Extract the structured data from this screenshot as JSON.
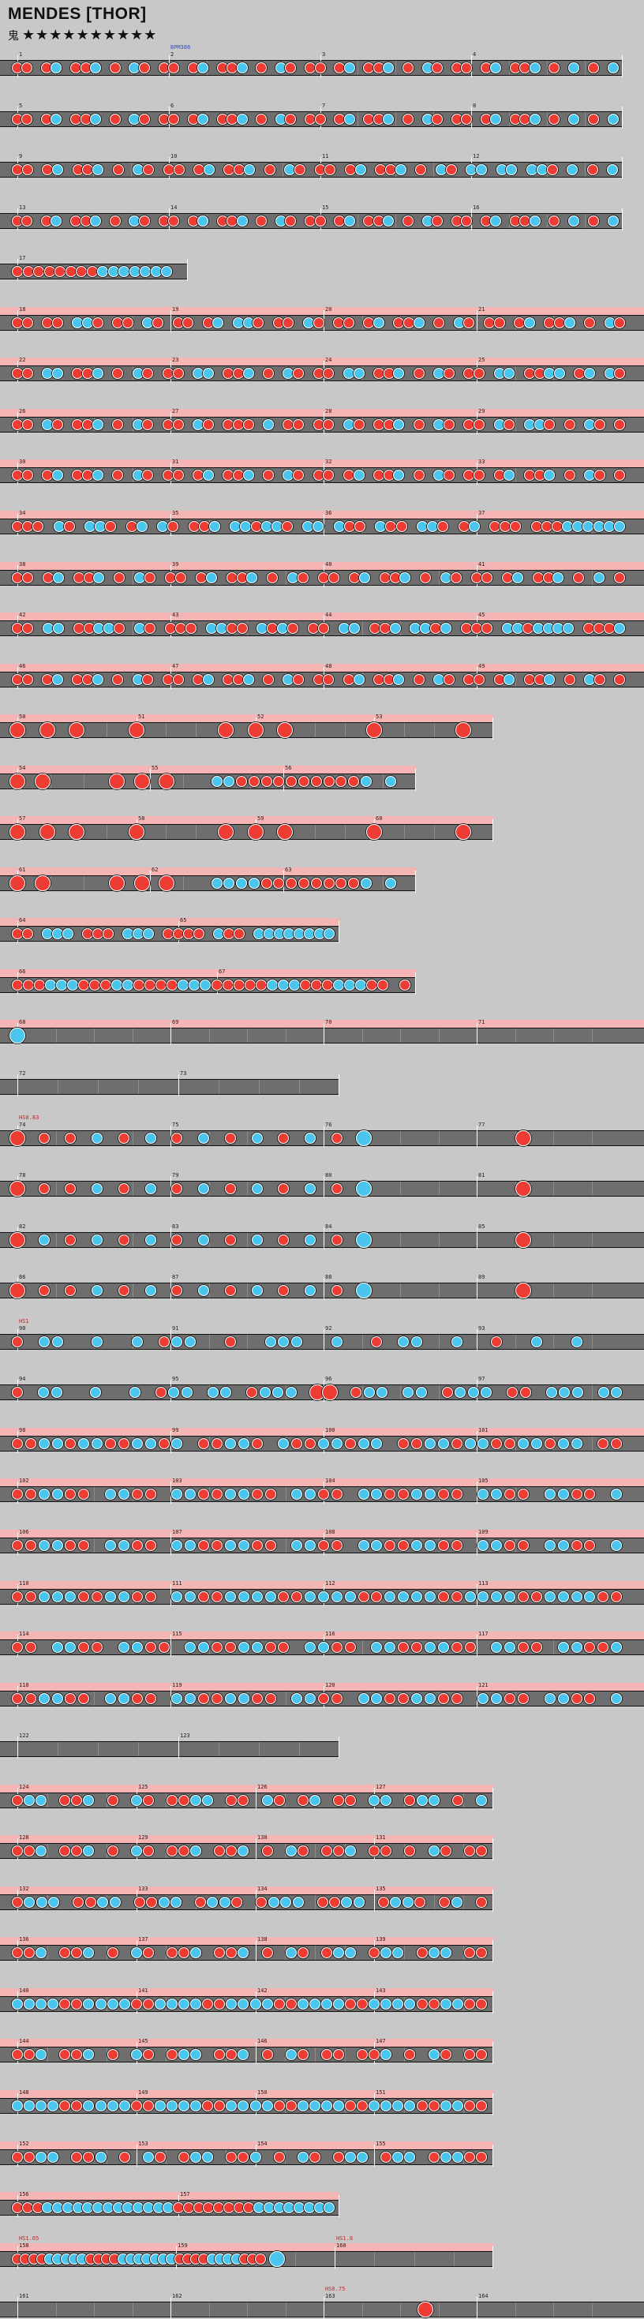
{
  "song": {
    "title": "MENDES [THOR]",
    "difficulty_label": "鬼",
    "stars": "★★★★★★★★★★",
    "star_count": 10
  },
  "rows": [
    {
      "measures": [
        1,
        2,
        3,
        4
      ],
      "end": 789,
      "gogo": false,
      "ann": [
        {
          "text": "BPM386",
          "after": 1,
          "color": "#3050d0"
        }
      ],
      "notes": "dd.dk.ddk.d.kd.dd.dk.ddk.d.kd.dd.dk.ddk.d.kd.dd.dk.ddk.d.k.d.k"
    },
    {
      "measures": [
        5,
        6,
        7,
        8
      ],
      "end": 789,
      "gogo": false,
      "ann": [],
      "notes": "dd.dk.ddk.d.kd.dd.dk.ddk.d.kd.dd.dk.ddk.d.kd.dd.dk.ddk.d.k.d.k"
    },
    {
      "measures": [
        9,
        10,
        11,
        12
      ],
      "end": 789,
      "gogo": false,
      "ann": [],
      "notes": "dd.dk.ddk.d.kd.dd.dk.ddk.d.kd.dd.dk.ddk.d.kd.kk.kk.kkd.k.d.k"
    },
    {
      "measures": [
        13,
        14,
        15,
        16
      ],
      "end": 789,
      "gogo": false,
      "ann": [],
      "notes": "dd.dk.ddk.d.kd.dd.dk.ddk.d.kd.dd.dk.ddk.d.kd.dd.dk.ddk.d.k.d.k"
    },
    {
      "measures": [
        17
      ],
      "end": 238,
      "gogo": false,
      "ann": [],
      "notes": "ddddddddkkkkkkk."
    },
    {
      "measures": [
        18,
        19,
        20,
        21
      ],
      "end": 816,
      "gogo": true,
      "ann": [],
      "notes": "dd.dd.kkd.dd.kd.dd.dk.kkd.dd.kd.dd.dk.ddk.d.kd.dd.dk.ddk.d.kd"
    },
    {
      "measures": [
        22,
        23,
        24,
        25
      ],
      "end": 816,
      "gogo": true,
      "ann": [],
      "notes": "dd.kk.ddk.d.kd.dd.kk.ddk.d.kd.dd.kk.ddk.d.kd.dd.kk.ddkk.dk.kd"
    },
    {
      "measures": [
        26,
        27,
        28,
        29
      ],
      "end": 816,
      "gogo": true,
      "ann": [],
      "notes": "dd.kd.ddk.d.kd.dd.kd.ddd.k.dd.dd.kd.ddk.d.kd.dd.kd.kkd.d.kd.d"
    },
    {
      "measures": [
        30,
        31,
        32,
        33
      ],
      "end": 816,
      "gogo": true,
      "ann": [],
      "notes": "dd.dk.ddk.d.kd.dd.dk.ddk.d.kd.dd.dk.ddk.d.kd.dd.dk.ddk.d.kd.d"
    },
    {
      "measures": [
        34,
        35,
        36,
        37
      ],
      "end": 816,
      "gogo": true,
      "ann": [],
      "notes": "ddd.kd.kkd.dk.kd.ddk.kkdkkd.kk.kdd.kdd.kkd.dk.ddd.dddkkkkkk"
    },
    {
      "measures": [
        38,
        39,
        40,
        41
      ],
      "end": 816,
      "gogo": true,
      "ann": [],
      "notes": "dd.dk.ddk.d.kd.dd.dk.ddk.d.kd.dd.dk.ddk.d.kd.dd.dk.ddk.d.k.d"
    },
    {
      "measures": [
        42,
        43,
        44,
        45
      ],
      "end": 816,
      "gogo": true,
      "ann": [],
      "notes": "dd.kk.ddkkd.kd.ddd.kkdd.kdkd.dd.kk.ddk.kkdk.ddd.kkdkkkk.dddk"
    },
    {
      "measures": [
        46,
        47,
        48,
        49
      ],
      "end": 816,
      "gogo": true,
      "ann": [],
      "notes": "dd.dk.ddk.d.kd.dd.dk.ddk.d.kd.dd.dk.ddk.d.kd.dd.dk.ddk.d.kd.d"
    },
    {
      "measures": [
        50,
        51,
        52,
        53
      ],
      "end": 625,
      "gogo": true,
      "ann": [],
      "notes": "D.D.D...D.....D.D.D.....D.....D."
    },
    {
      "measures": [
        54,
        55,
        56
      ],
      "end": 527,
      "gogo": true,
      "ann": [],
      "notes": "D.D.....D.D.D...kkddddddddddk.k."
    },
    {
      "measures": [
        57,
        58,
        59,
        60
      ],
      "end": 625,
      "gogo": true,
      "ann": [],
      "notes": "D.D.D...D.....D.D.D.....D.....D."
    },
    {
      "measures": [
        61,
        62,
        63
      ],
      "end": 527,
      "gogo": true,
      "ann": [],
      "notes": "D.D.....D.D.D...kkkkddddddddk.k."
    },
    {
      "measures": [
        64,
        65
      ],
      "end": 430,
      "gogo": true,
      "ann": [],
      "notes": "dd.kkk.ddd.kkk.dddd.kdd.kkkkkkkk"
    },
    {
      "measures": [
        66,
        67
      ],
      "end": 527,
      "gogo": true,
      "ann": [],
      "notes": "dddkkkdddkkddddkkkdddddkkkdddkkkdd.d"
    },
    {
      "measures": [
        68,
        69,
        70,
        71
      ],
      "end": 816,
      "gogo": true,
      "ann": [],
      "notes": "K..............................................."
    },
    {
      "measures": [
        72,
        73
      ],
      "end": 430,
      "gogo": false,
      "ann": [],
      "notes": ""
    },
    {
      "measures": [
        74,
        75,
        76,
        77
      ],
      "end": 816,
      "gogo": false,
      "ann": [
        {
          "text": "HS0.83",
          "after": 0,
          "color": "#d02020"
        }
      ],
      "notes": "D.d.d.k.d.k.d.k.d.k.d.k.d.K...........D......."
    },
    {
      "measures": [
        78,
        79,
        80,
        81
      ],
      "end": 816,
      "gogo": false,
      "ann": [],
      "notes": "D.d.d.k.d.k.d.k.d.k.d.k.d.K...........D......."
    },
    {
      "measures": [
        82,
        83,
        84,
        85
      ],
      "end": 816,
      "gogo": false,
      "ann": [],
      "notes": "D.k.d.k.d.k.d.k.d.k.d.k.d.K...........D......."
    },
    {
      "measures": [
        86,
        87,
        88,
        89
      ],
      "end": 816,
      "gogo": false,
      "ann": [],
      "notes": "D.d.d.k.d.k.d.k.d.k.d.k.d.K...........D......."
    },
    {
      "measures": [
        90,
        91,
        92,
        93
      ],
      "end": 816,
      "gogo": false,
      "ann": [
        {
          "text": "HS1",
          "after": 0,
          "color": "#d02020"
        }
      ],
      "notes": "d.kk..k..k.dkk..d..kkk..k..d.kk..k..d..k..k..."
    },
    {
      "measures": [
        94,
        95,
        96,
        97
      ],
      "end": 816,
      "gogo": false,
      "ann": [],
      "notes": "d.kk..k..k.dkk.kk.dkkk.DD.dkk.kk.dkkk.dd.kkk.kk"
    },
    {
      "measures": [
        98,
        99,
        100,
        101
      ],
      "end": 816,
      "gogo": true,
      "ann": [],
      "notes": "ddkkdkkddkkdk.ddkkd.kddkkdkk.ddkkdkkddkkdkk.dd"
    },
    {
      "measures": [
        102,
        103,
        104,
        105
      ],
      "end": 816,
      "gogo": true,
      "ann": [],
      "notes": "ddkkdd.kkdd.kkddkkdd.kkdd.kkddkkdd.kkdd.kkdd.k"
    },
    {
      "measures": [
        106,
        107,
        108,
        109
      ],
      "end": 816,
      "gogo": true,
      "ann": [],
      "notes": "ddkkdd.kkdd.kkddkkdd.kkdd.kkddkkdd.kkdd.kkdd.k"
    },
    {
      "measures": [
        110,
        111,
        112,
        113
      ],
      "end": 816,
      "gogo": true,
      "ann": [],
      "notes": "ddkkkddkkdd.kkddkkkkddkkkkddkkkkddkkkkddkkkkdd"
    },
    {
      "measures": [
        114,
        115,
        116,
        117
      ],
      "end": 816,
      "gogo": true,
      "ann": [],
      "notes": "dd.kkdd.kkdd.kkddkkdd.kkdd.kkddkkdd.kkdd.kkddk"
    },
    {
      "measures": [
        118,
        119,
        120,
        121
      ],
      "end": 816,
      "gogo": true,
      "ann": [],
      "notes": "ddkkdd.kkdd.kkddkkdd.kkdd.kkddkkdd.kkdd.kkdd.k"
    },
    {
      "measures": [
        122,
        123
      ],
      "end": 430,
      "gogo": false,
      "ann": [],
      "notes": ""
    },
    {
      "measures": [
        124,
        125,
        126,
        127
      ],
      "end": 625,
      "gogo": true,
      "ann": [],
      "notes": "dkk.ddk.d.kd.ddkk.dd.kd.dk.dd.kk.dkk.d.k"
    },
    {
      "measures": [
        128,
        129,
        130,
        131
      ],
      "end": 625,
      "gogo": true,
      "ann": [],
      "notes": "ddk.ddk.d.kd.ddk.ddk.d.kd.ddk.dd.d.kd.dd"
    },
    {
      "measures": [
        132,
        133,
        134,
        135
      ],
      "end": 625,
      "gogo": true,
      "ann": [],
      "notes": "dkkk.ddkk.ddkk.dkkd.dkkk.ddkk.dkkd.dk.d"
    },
    {
      "measures": [
        136,
        137,
        138,
        139
      ],
      "end": 625,
      "gogo": true,
      "ann": [],
      "notes": "ddk.ddk.d.kd.ddk.ddk.d.kd.dkk.dkk.dkk.dd"
    },
    {
      "measures": [
        140,
        141,
        142,
        143
      ],
      "end": 625,
      "gogo": true,
      "ann": [],
      "notes": "kkkkddkkkkddkkkkddkkkkddkkkkddkkkkddkkdd"
    },
    {
      "measures": [
        144,
        145,
        146,
        147
      ],
      "end": 625,
      "gogo": true,
      "ann": [],
      "notes": "ddk.ddk.d.kd.dkk.ddk.d.kd.dd.ddk.d.kd.dd"
    },
    {
      "measures": [
        148,
        149,
        150,
        151
      ],
      "end": 625,
      "gogo": true,
      "ann": [],
      "notes": "kkkkddkkkkddkkkkddkkkkddkkkkddkkkkddkkdd"
    },
    {
      "measures": [
        152,
        153,
        154,
        155
      ],
      "end": 625,
      "gogo": true,
      "ann": [],
      "notes": "ddkk.ddk.d.kd.dkk.ddk.d.kd.dkk.dkk.dkkdd"
    },
    {
      "measures": [
        156,
        157
      ],
      "end": 430,
      "gogo": true,
      "ann": [],
      "notes": "dddkkkkkkkkkkkkkddddddddkkkkkkkk"
    },
    {
      "measures": [
        158,
        159,
        160
      ],
      "end": 625,
      "gogo": true,
      "ann": [
        {
          "text": "HS1.05",
          "after": 0,
          "color": "#d02020"
        },
        {
          "text": "HS1.8",
          "after": 2,
          "color": "#d02020"
        }
      ],
      "notes": "ddddkkkkkddddkkkkkkkddddkkkkddd.K...........",
      "partial": 0.75
    },
    {
      "measures": [
        161,
        162,
        163,
        164
      ],
      "end": 816,
      "gogo": false,
      "ann": [
        {
          "text": "HS0.75",
          "after": 2,
          "color": "#d02020"
        }
      ],
      "notes": "................................D..............."
    }
  ]
}
